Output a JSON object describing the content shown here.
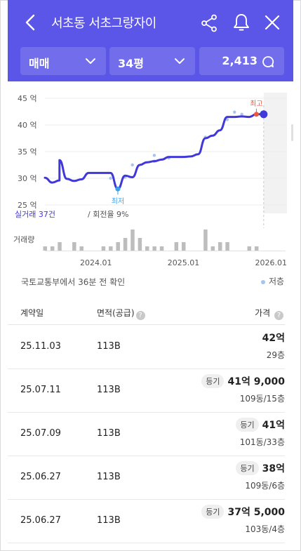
{
  "header": {
    "title": "서초동 서초그랑자이",
    "filters": {
      "type": "매매",
      "size": "34평",
      "count": "2,413"
    }
  },
  "chart_labels": {
    "highest": "최고",
    "lowest": "최저",
    "trades_label": "실거래 37건",
    "turnover_label": "/ 회전율 9%",
    "volume_label": "거래량"
  },
  "chart_data": {
    "type": "line",
    "y_unit": "억",
    "yticks": [
      "45 억",
      "40 억",
      "35 억",
      "30 억",
      "25 억"
    ],
    "ylim": [
      25,
      45
    ],
    "xticks": [
      "2024.01",
      "2025.01",
      "2026.01"
    ],
    "xlim": [
      "2023.06",
      "2026.03"
    ],
    "line_points": [
      [
        "2023.06",
        30.1
      ],
      [
        "2023.07",
        29.2
      ],
      [
        "2023.08",
        29.6
      ],
      [
        "2023.08",
        33.4
      ],
      [
        "2023.09",
        29.9
      ],
      [
        "2023.10",
        29.5
      ],
      [
        "2023.11",
        29.8
      ],
      [
        "2023.12",
        31.0
      ],
      [
        "2024.01",
        31.0
      ],
      [
        "2024.02",
        31.0
      ],
      [
        "2024.03",
        31.0
      ],
      [
        "2024.04",
        28.0
      ],
      [
        "2024.05",
        30.5
      ],
      [
        "2024.06",
        30.2
      ],
      [
        "2024.07",
        32.5
      ],
      [
        "2024.08",
        33.0
      ],
      [
        "2024.09",
        33.2
      ],
      [
        "2024.10",
        33.5
      ],
      [
        "2024.11",
        34.0
      ],
      [
        "2024.12",
        34.0
      ],
      [
        "2025.01",
        34.0
      ],
      [
        "2025.02",
        34.1
      ],
      [
        "2025.03",
        34.5
      ],
      [
        "2025.04",
        37.5
      ],
      [
        "2025.05",
        38.0
      ],
      [
        "2025.06",
        39.0
      ],
      [
        "2025.07",
        41.5
      ],
      [
        "2025.08",
        41.5
      ],
      [
        "2025.09",
        41.6
      ],
      [
        "2025.10",
        41.5
      ],
      [
        "2025.11",
        42.0
      ],
      [
        "2025.12",
        42.0
      ]
    ],
    "low_points": [
      [
        "2024.03",
        30.0
      ],
      [
        "2024.05",
        30.2
      ],
      [
        "2024.06",
        32.5
      ],
      [
        "2024.09",
        34.3
      ],
      [
        "2024.09",
        33.2
      ],
      [
        "2024.11",
        33.8
      ],
      [
        "2025.04",
        37.7
      ],
      [
        "2025.07",
        41.0
      ],
      [
        "2025.08",
        42.4
      ],
      [
        "2025.09",
        42.0
      ]
    ],
    "highest_point": [
      "2025.11",
      42.0
    ],
    "lowest_point": [
      "2024.04",
      28.0
    ],
    "latest_point": [
      "2025.12",
      42.0
    ],
    "volume": [
      [
        "2023.06",
        1
      ],
      [
        "2023.07",
        1
      ],
      [
        "2023.08",
        2
      ],
      [
        "2023.10",
        2
      ],
      [
        "2023.11",
        1
      ],
      [
        "2024.02",
        1
      ],
      [
        "2024.03",
        1
      ],
      [
        "2024.04",
        2
      ],
      [
        "2024.05",
        3
      ],
      [
        "2024.06",
        5
      ],
      [
        "2024.07",
        3
      ],
      [
        "2024.08",
        1
      ],
      [
        "2024.09",
        1
      ],
      [
        "2024.10",
        1
      ],
      [
        "2024.12",
        2
      ],
      [
        "2025.01",
        2
      ],
      [
        "2025.04",
        5
      ],
      [
        "2025.05",
        1
      ],
      [
        "2025.06",
        2
      ],
      [
        "2025.07",
        2
      ],
      [
        "2025.10",
        1
      ],
      [
        "2025.11",
        1
      ]
    ],
    "grid": true,
    "colors": {
      "line": "#4138d9",
      "highest": "#f2563d",
      "lowest": "#3aa0e8",
      "low_points": "#a7c4ec",
      "volume": "#bdbdbd",
      "future_shade": "#f2f2f2"
    }
  },
  "source_text": "국토교통부에서 36분 전 확인",
  "legend_low": "저층",
  "table": {
    "headers": [
      "계약일",
      "면적(공급)",
      "가격"
    ],
    "rows": [
      {
        "date": "25.11.03",
        "area": "113B",
        "tag": "",
        "price": "42억",
        "floor": "29층"
      },
      {
        "date": "25.07.11",
        "area": "113B",
        "tag": "등기",
        "price": "41억 9,000",
        "floor": "109동/15층"
      },
      {
        "date": "25.07.09",
        "area": "113B",
        "tag": "등기",
        "price": "41억",
        "floor": "101동/33층"
      },
      {
        "date": "25.06.27",
        "area": "113B",
        "tag": "등기",
        "price": "38억",
        "floor": "109동/6층"
      },
      {
        "date": "25.06.27",
        "area": "113B",
        "tag": "등기",
        "price": "37억 5,000",
        "floor": "103동/4층"
      }
    ]
  },
  "colors": {
    "header_bg": "#5b55e8"
  }
}
